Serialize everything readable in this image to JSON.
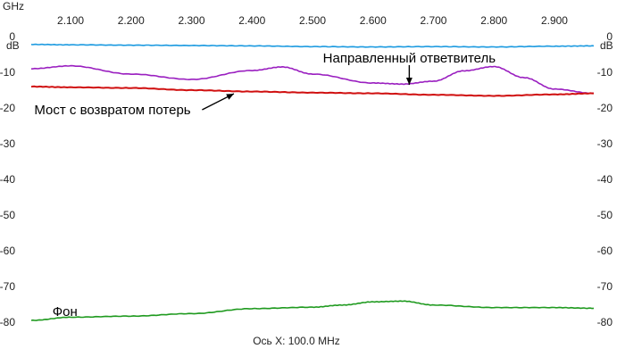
{
  "chart_data": {
    "type": "line",
    "x_unit_label": "GHz",
    "y_unit_label_left": "dB",
    "y_unit_label_right": "dB",
    "xlim": [
      2.035,
      2.965
    ],
    "ylim": [
      -81,
      2
    ],
    "x_ticks": [
      2.1,
      2.2,
      2.3,
      2.4,
      2.5,
      2.6,
      2.7,
      2.8,
      2.9
    ],
    "x_tick_labels": [
      "2.100",
      "2.200",
      "2.300",
      "2.400",
      "2.500",
      "2.600",
      "2.700",
      "2.800",
      "2.900"
    ],
    "y_ticks": [
      0,
      -10,
      -20,
      -30,
      -40,
      -50,
      -60,
      -70,
      -80
    ],
    "y_tick_labels_left": [
      "0",
      "-10",
      "-20",
      "-30",
      "-40",
      "-50",
      "-60",
      "-70",
      "-80"
    ],
    "y_tick_labels_right": [
      "0",
      "-10",
      "-20",
      "-30",
      "-40",
      "-50",
      "-60",
      "-70",
      "-80"
    ],
    "x_axis_note": "Ось X: 100.0 MHz",
    "grid": false,
    "series": [
      {
        "color": "#1b9ae0",
        "x": [
          2.035,
          2.1,
          2.2,
          2.3,
          2.4,
          2.5,
          2.6,
          2.7,
          2.8,
          2.9,
          2.965
        ],
        "y": [
          -2.2,
          -2.3,
          -2.4,
          -2.5,
          -2.6,
          -2.8,
          -2.9,
          -2.8,
          -2.9,
          -2.7,
          -2.6
        ]
      },
      {
        "color": "#9a1fc0",
        "x": [
          2.035,
          2.1,
          2.2,
          2.3,
          2.4,
          2.45,
          2.5,
          2.6,
          2.65,
          2.7,
          2.75,
          2.8,
          2.85,
          2.9,
          2.965
        ],
        "y": [
          -9.0,
          -8.2,
          -10.5,
          -12.0,
          -9.5,
          -8.5,
          -10.5,
          -13.0,
          -13.3,
          -12.5,
          -9.6,
          -8.4,
          -11.5,
          -14.7,
          -15.9
        ]
      },
      {
        "color": "#d01010",
        "x": [
          2.035,
          2.1,
          2.2,
          2.3,
          2.4,
          2.5,
          2.6,
          2.7,
          2.8,
          2.9,
          2.965
        ],
        "y": [
          -14.0,
          -14.2,
          -14.4,
          -15.0,
          -15.4,
          -15.7,
          -15.9,
          -16.3,
          -16.6,
          -16.2,
          -15.9
        ]
      },
      {
        "color": "#1f9a1f",
        "x": [
          2.035,
          2.1,
          2.2,
          2.3,
          2.4,
          2.5,
          2.55,
          2.6,
          2.65,
          2.7,
          2.8,
          2.9,
          2.965
        ],
        "y": [
          -79.5,
          -78.6,
          -78.3,
          -77.6,
          -76.2,
          -75.8,
          -75.2,
          -74.3,
          -74.1,
          -75.2,
          -75.9,
          -75.9,
          -76.1
        ]
      }
    ],
    "annotations": [
      {
        "text": "Направленный ответвитель",
        "label_x": 2.66,
        "label_y": -6.0,
        "arrow_to": [
          2.66,
          -13.5
        ],
        "anchor": "middle"
      },
      {
        "text": "Мост с возвратом потерь",
        "label_x": 2.04,
        "label_y": -20.5,
        "arrow_to": [
          2.37,
          -16.0
        ],
        "anchor": "start"
      },
      {
        "text": "Фон",
        "label_x": 2.07,
        "label_y": -77.0,
        "anchor": "start"
      }
    ]
  }
}
